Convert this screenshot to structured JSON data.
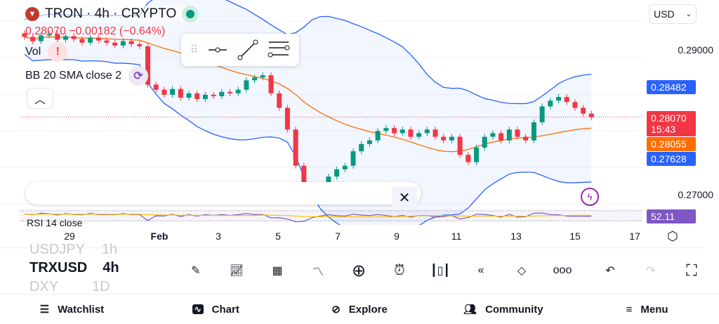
{
  "header": {
    "symbol_title": "TRON · 4h · CRYPTO",
    "change_text": "0.28070  −0.00182 (−0.64%)",
    "currency": "USD"
  },
  "indicators": [
    {
      "label": "Vol",
      "badge": "!"
    },
    {
      "label": "BB 20 SMA close 2",
      "badge": "refresh-icon"
    }
  ],
  "rsi": {
    "label": "RSI 14 close",
    "value": "52.11"
  },
  "price_axis": {
    "ticks": [
      "0.29000",
      "0.27000"
    ],
    "upper_band": "0.28482",
    "last_price": "0.28070",
    "countdown": "15:43",
    "basis": "0.28055",
    "lower_band": "0.27628"
  },
  "time_axis": [
    "29",
    "Feb",
    "3",
    "5",
    "7",
    "9",
    "11",
    "13",
    "15",
    "17"
  ],
  "symbols": {
    "prev": "USDJPY",
    "prev_tf": "1h",
    "current": "TRXUSD",
    "current_tf": "4h",
    "next": "DXY",
    "next_tf": "1D"
  },
  "toolbar": [
    "pencil-icon",
    "indicators-icon",
    "grid-icon",
    "trend-icon",
    "plus-circle-icon",
    "alarm-icon",
    "candles-icon",
    "rewind-icon",
    "layers-icon",
    "more-icon",
    "undo-icon",
    "redo-icon",
    "fullscreen-icon"
  ],
  "nav": [
    {
      "label": "Watchlist"
    },
    {
      "label": "Chart"
    },
    {
      "label": "Explore"
    },
    {
      "label": "Community"
    },
    {
      "label": "Menu"
    }
  ],
  "colors": {
    "up": "#089981",
    "down": "#f23645",
    "band": "#2962ff",
    "basis": "#ff6d00",
    "rsi": "#7e57c2"
  },
  "chart_data": {
    "type": "candlestick",
    "interval": "4h",
    "closes": [
      0.2918,
      0.2912,
      0.292,
      0.2922,
      0.2914,
      0.2919,
      0.2915,
      0.291,
      0.2917,
      0.2913,
      0.291,
      0.2906,
      0.2912,
      0.2908,
      0.2905,
      0.2852,
      0.2845,
      0.2838,
      0.2846,
      0.2834,
      0.284,
      0.2832,
      0.2838,
      0.2836,
      0.2842,
      0.284,
      0.2845,
      0.2858,
      0.2862,
      0.2865,
      0.284,
      0.282,
      0.279,
      0.274,
      0.27,
      0.2695,
      0.2705,
      0.2725,
      0.2735,
      0.274,
      0.276,
      0.277,
      0.2775,
      0.2788,
      0.2792,
      0.2785,
      0.279,
      0.278,
      0.2785,
      0.279,
      0.278,
      0.2775,
      0.278,
      0.2755,
      0.2745,
      0.2765,
      0.278,
      0.2785,
      0.2775,
      0.279,
      0.278,
      0.2775,
      0.28,
      0.2822,
      0.283,
      0.2835,
      0.2828,
      0.282,
      0.2812,
      0.2807
    ]
  }
}
